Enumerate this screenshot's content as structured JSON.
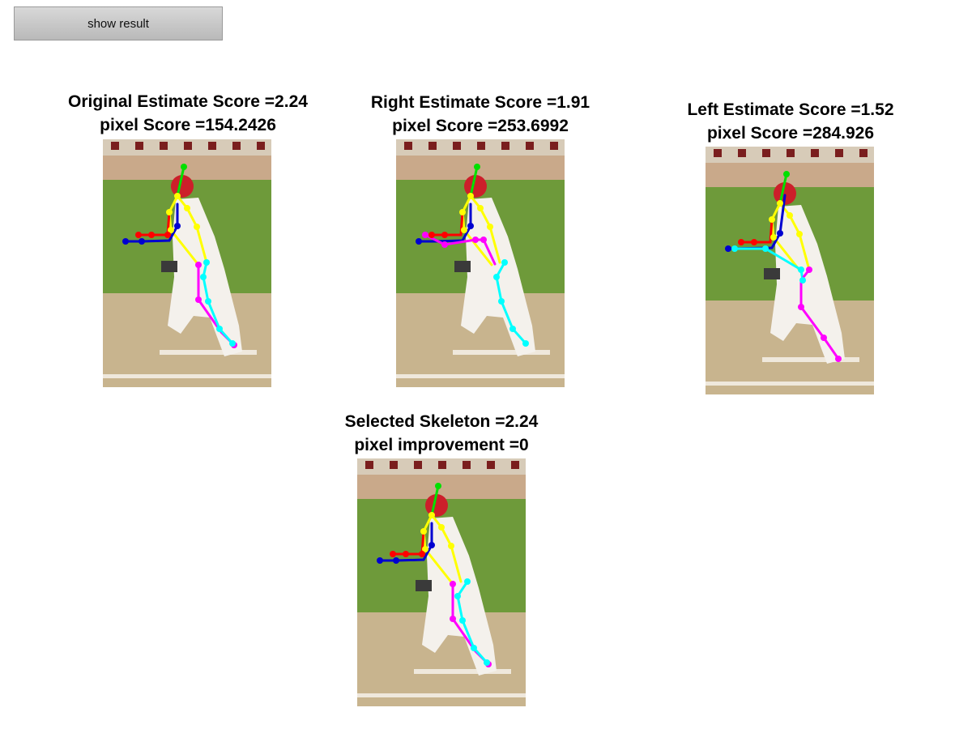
{
  "toolbar": {
    "show_result_label": "show result"
  },
  "panels": {
    "original": {
      "title": "Original Estimate Score =2.24",
      "subtitle": "pixel Score =154.2426",
      "image_alt": "baseball batter with original pose skeleton"
    },
    "right": {
      "title": "Right Estimate Score =1.91",
      "subtitle": "pixel Score =253.6992",
      "image_alt": "baseball batter with right pose skeleton"
    },
    "left": {
      "title": "Left Estimate Score =1.52",
      "subtitle": "pixel Score =284.926",
      "image_alt": "baseball batter with left pose skeleton"
    },
    "selected": {
      "title": "Selected Skeleton =2.24",
      "subtitle": "pixel improvement =0",
      "image_alt": "baseball batter with selected pose skeleton"
    }
  },
  "colors": {
    "head": "#00e000",
    "torso": "#ffff00",
    "right_arm": "#ff0000",
    "left_arm": "#0000d0",
    "left_arm_alt": "#ff00ff",
    "right_leg": "#ff00ff",
    "left_leg": "#00ffff",
    "grass": "#6e9a3a",
    "dirt": "#c8b48e"
  }
}
